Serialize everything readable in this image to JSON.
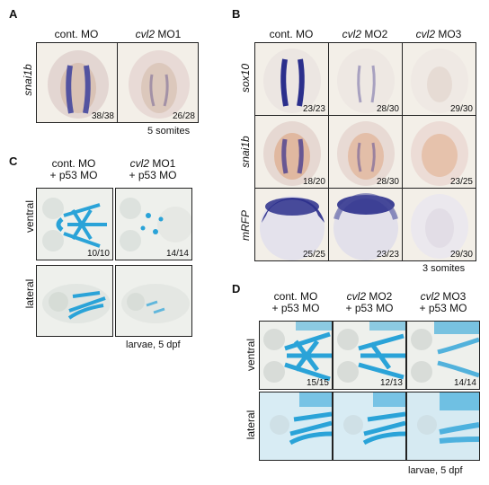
{
  "panelA": {
    "letter": "A",
    "cols": [
      "cont. MO",
      "cvl2 MO1"
    ],
    "col_italic_part": [
      "",
      "cvl2"
    ],
    "col_rest": [
      "cont. MO",
      " MO1"
    ],
    "row_label": "snai1b",
    "counts": [
      "38/38",
      "26/28"
    ],
    "caption": "5 somites"
  },
  "panelB": {
    "letter": "B",
    "col_italic": [
      "",
      "cvl2",
      "cvl2"
    ],
    "col_rest": [
      "cont. MO",
      " MO2",
      " MO3"
    ],
    "rows": [
      "sox10",
      "snai1b",
      "mRFP"
    ],
    "counts": [
      [
        "23/23",
        "28/30",
        "29/30"
      ],
      [
        "18/20",
        "28/30",
        "23/25"
      ],
      [
        "25/25",
        "23/23",
        "29/30"
      ]
    ],
    "caption": "3 somites"
  },
  "panelC": {
    "letter": "C",
    "col1_line1": "cont. MO",
    "col1_line2": "+ p53 MO",
    "col2_italic": "cvl2",
    "col2_rest": " MO1",
    "col2_line2": "+ p53 MO",
    "rows": [
      "ventral",
      "lateral"
    ],
    "counts": [
      "10/10",
      "14/14"
    ],
    "caption": "larvae, 5 dpf"
  },
  "panelD": {
    "letter": "D",
    "col1_line1": "cont. MO",
    "col1_line2": "+ p53 MO",
    "col2_italic": "cvl2",
    "col2_rest": " MO2",
    "col2_line2": "+ p53 MO",
    "col3_italic": "cvl2",
    "col3_rest": " MO3",
    "col3_line2": "+ p53 MO",
    "rows": [
      "ventral",
      "lateral"
    ],
    "counts": [
      "15/15",
      "12/13",
      "14/14"
    ],
    "caption": "larvae, 5 dpf"
  },
  "colors": {
    "embryo_bg": "#f3efe8",
    "stain_purple": "#3b3f9c",
    "cartilage_blue": "#2aa3d8"
  }
}
